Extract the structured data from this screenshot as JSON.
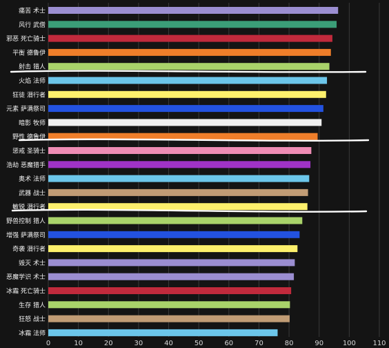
{
  "chart_data": {
    "type": "bar",
    "orientation": "horizontal",
    "title": "",
    "xlabel": "",
    "ylabel": "",
    "xlim": [
      0,
      110
    ],
    "x_ticks": [
      "0",
      "10",
      "20",
      "30",
      "40",
      "50",
      "60",
      "70",
      "80",
      "90",
      "100",
      "110"
    ],
    "grid": true,
    "legend": "none",
    "categories": [
      "痛苦 术士",
      "风行 武僧",
      "邪恶 死亡骑士",
      "平衡 德鲁伊",
      "射击 猎人",
      "火焰 法师",
      "狂徒 潜行者",
      "元素 萨满祭司",
      "暗影 牧师",
      "野性 德鲁伊",
      "惩戒 圣骑士",
      "浩劫 恶魔猎手",
      "奥术 法师",
      "武器 战士",
      "敏锐 潜行者",
      "野兽控制 猎人",
      "增强 萨满祭司",
      "奇袭 潜行者",
      "毁灭 术士",
      "恶魔学识 术士",
      "冰霜 死亡骑士",
      "生存 猎人",
      "狂怒 战士",
      "冰霜 法师"
    ],
    "values": [
      96.3,
      95.8,
      94.4,
      93.9,
      93.4,
      92.6,
      92.3,
      91.4,
      90.8,
      89.5,
      87.4,
      87.1,
      86.7,
      86.3,
      86.1,
      84.4,
      83.5,
      82.8,
      81.9,
      81.6,
      80.7,
      80.3,
      80.2,
      76.2
    ],
    "colors": [
      "#9b8ed1",
      "#3b9e78",
      "#c12a3c",
      "#ef7e2a",
      "#a9d36a",
      "#6cc6ea",
      "#fdf06c",
      "#2352e0",
      "#efefef",
      "#ef7e2a",
      "#ee8cb4",
      "#a033c6",
      "#6cc6ea",
      "#c19c75",
      "#fdf06c",
      "#a9d36a",
      "#2352e0",
      "#fdf06c",
      "#9b8ed1",
      "#9b8ed1",
      "#c12a3c",
      "#a9d36a",
      "#c19c75",
      "#6cc6ea"
    ]
  }
}
